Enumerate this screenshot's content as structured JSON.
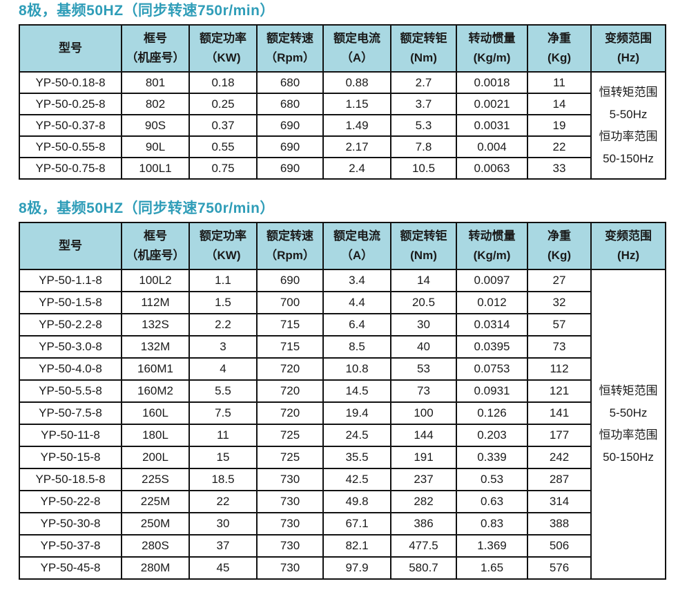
{
  "colors": {
    "title_color": "#2f9db8",
    "header_bg": "#a9d8e2",
    "border_color": "#111111",
    "text_color": "#1a1a1a"
  },
  "columns": [
    {
      "line1": "型号",
      "line2": ""
    },
    {
      "line1": "框号",
      "line2": "（机座号）"
    },
    {
      "line1": "额定功率",
      "line2": "（KW)"
    },
    {
      "line1": "额定转速",
      "line2": "（Rpm）"
    },
    {
      "line1": "额定电流",
      "line2": "（A）"
    },
    {
      "line1": "额定转钜",
      "line2": "(Nm)"
    },
    {
      "line1": "转动惯量",
      "line2": "(Kg/m)"
    },
    {
      "line1": "净重",
      "line2": "(Kg)"
    },
    {
      "line1": "变频范围",
      "line2": "(Hz)"
    }
  ],
  "sections": [
    {
      "title": "8极，基频50HZ（同步转速750r/min）",
      "rows": [
        [
          "YP-50-0.18-8",
          "801",
          "0.18",
          "680",
          "0.88",
          "2.7",
          "0.0018",
          "11"
        ],
        [
          "YP-50-0.25-8",
          "802",
          "0.25",
          "680",
          "1.15",
          "3.7",
          "0.0021",
          "14"
        ],
        [
          "YP-50-0.37-8",
          "90S",
          "0.37",
          "690",
          "1.49",
          "5.3",
          "0.0031",
          "19"
        ],
        [
          "YP-50-0.55-8",
          "90L",
          "0.55",
          "690",
          "2.17",
          "7.8",
          "0.004",
          "22"
        ],
        [
          "YP-50-0.75-8",
          "100L1",
          "0.75",
          "690",
          "2.4",
          "10.5",
          "0.0063",
          "33"
        ]
      ],
      "note": [
        "恒转矩范围",
        "5-50Hz",
        "恒功率范围",
        "50-150Hz"
      ]
    },
    {
      "title": "8极，基频50HZ（同步转速750r/min）",
      "rows": [
        [
          "YP-50-1.1-8",
          "100L2",
          "1.1",
          "690",
          "3.4",
          "14",
          "0.0097",
          "27"
        ],
        [
          "YP-50-1.5-8",
          "112M",
          "1.5",
          "700",
          "4.4",
          "20.5",
          "0.012",
          "32"
        ],
        [
          "YP-50-2.2-8",
          "132S",
          "2.2",
          "715",
          "6.4",
          "30",
          "0.0314",
          "57"
        ],
        [
          "YP-50-3.0-8",
          "132M",
          "3",
          "715",
          "8.5",
          "40",
          "0.0395",
          "73"
        ],
        [
          "YP-50-4.0-8",
          "160M1",
          "4",
          "720",
          "10.8",
          "53",
          "0.0753",
          "112"
        ],
        [
          "YP-50-5.5-8",
          "160M2",
          "5.5",
          "720",
          "14.5",
          "73",
          "0.0931",
          "121"
        ],
        [
          "YP-50-7.5-8",
          "160L",
          "7.5",
          "720",
          "19.4",
          "100",
          "0.126",
          "141"
        ],
        [
          "YP-50-11-8",
          "180L",
          "11",
          "725",
          "24.5",
          "144",
          "0.203",
          "177"
        ],
        [
          "YP-50-15-8",
          "200L",
          "15",
          "725",
          "35.5",
          "191",
          "0.339",
          "242"
        ],
        [
          "YP-50-18.5-8",
          "225S",
          "18.5",
          "730",
          "42.5",
          "237",
          "0.53",
          "287"
        ],
        [
          "YP-50-22-8",
          "225M",
          "22",
          "730",
          "49.8",
          "282",
          "0.63",
          "314"
        ],
        [
          "YP-50-30-8",
          "250M",
          "30",
          "730",
          "67.1",
          "386",
          "0.83",
          "388"
        ],
        [
          "YP-50-37-8",
          "280S",
          "37",
          "730",
          "82.1",
          "477.5",
          "1.369",
          "506"
        ],
        [
          "YP-50-45-8",
          "280M",
          "45",
          "730",
          "97.9",
          "580.7",
          "1.65",
          "576"
        ]
      ],
      "note": [
        "恒转矩范围",
        "5-50Hz",
        "恒功率范围",
        "50-150Hz"
      ]
    }
  ]
}
